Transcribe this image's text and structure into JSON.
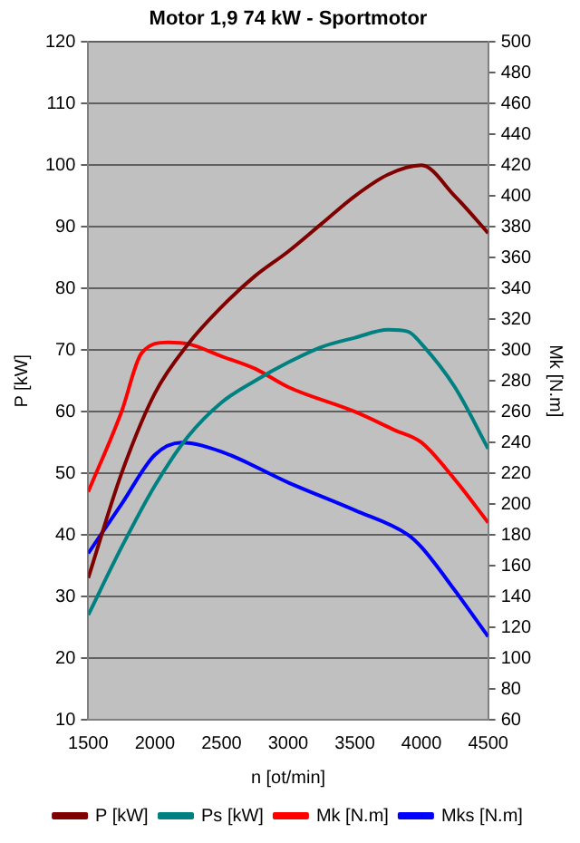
{
  "chart_data": {
    "type": "line",
    "title": "Motor 1,9 74 kW - Sportmotor",
    "xlabel": "n [ot/min]",
    "ylabel": "P [kW]",
    "y2label": "Mk [N.m]",
    "xlim": [
      1500,
      4500
    ],
    "xticks": [
      1500,
      2000,
      2500,
      3000,
      3500,
      4000,
      4500
    ],
    "ylim": [
      10,
      120
    ],
    "yticks": [
      10,
      20,
      30,
      40,
      50,
      60,
      70,
      80,
      90,
      100,
      110,
      120
    ],
    "y2lim": [
      60,
      500
    ],
    "y2ticks": [
      60,
      80,
      100,
      120,
      140,
      160,
      180,
      200,
      220,
      240,
      260,
      280,
      300,
      320,
      340,
      360,
      380,
      400,
      420,
      440,
      460,
      480,
      500
    ],
    "grid": "y",
    "legend": "bottom",
    "line_style": "solid",
    "series": [
      {
        "name": "P [kW]",
        "color": "#800000",
        "x": [
          1500,
          1750,
          2000,
          2250,
          2500,
          2750,
          3000,
          3250,
          3500,
          3750,
          4000,
          4250,
          4500
        ],
        "values": [
          33,
          50,
          63,
          71,
          77,
          82,
          86,
          90.5,
          95,
          98.5,
          100,
          95,
          89
        ]
      },
      {
        "name": "Ps [kW]",
        "color": "#008080",
        "x": [
          1500,
          1750,
          2000,
          2250,
          2500,
          2750,
          3000,
          3250,
          3500,
          3750,
          3900,
          4000,
          4250,
          4500
        ],
        "values": [
          27,
          38,
          48,
          56,
          61.5,
          65,
          68,
          70.5,
          72,
          73.3,
          73,
          71,
          64,
          54
        ]
      },
      {
        "name": "Mk [N.m]",
        "color": "#ff0000",
        "axis": "y2",
        "x": [
          1500,
          1750,
          1900,
          2100,
          2250,
          2500,
          2750,
          3000,
          3500,
          3800,
          4000,
          4250,
          4500
        ],
        "values": [
          208,
          260,
          298,
          305,
          304,
          296,
          288,
          276,
          260,
          248,
          240,
          216,
          188
        ]
      },
      {
        "name": "Mks [N.m]",
        "color": "#0000ff",
        "axis": "y2",
        "x": [
          1500,
          1750,
          2000,
          2200,
          2500,
          3000,
          3500,
          3900,
          4000,
          4250,
          4500
        ],
        "values": [
          168,
          200,
          232,
          240,
          234,
          214,
          196,
          180,
          172,
          144,
          114
        ]
      }
    ]
  }
}
